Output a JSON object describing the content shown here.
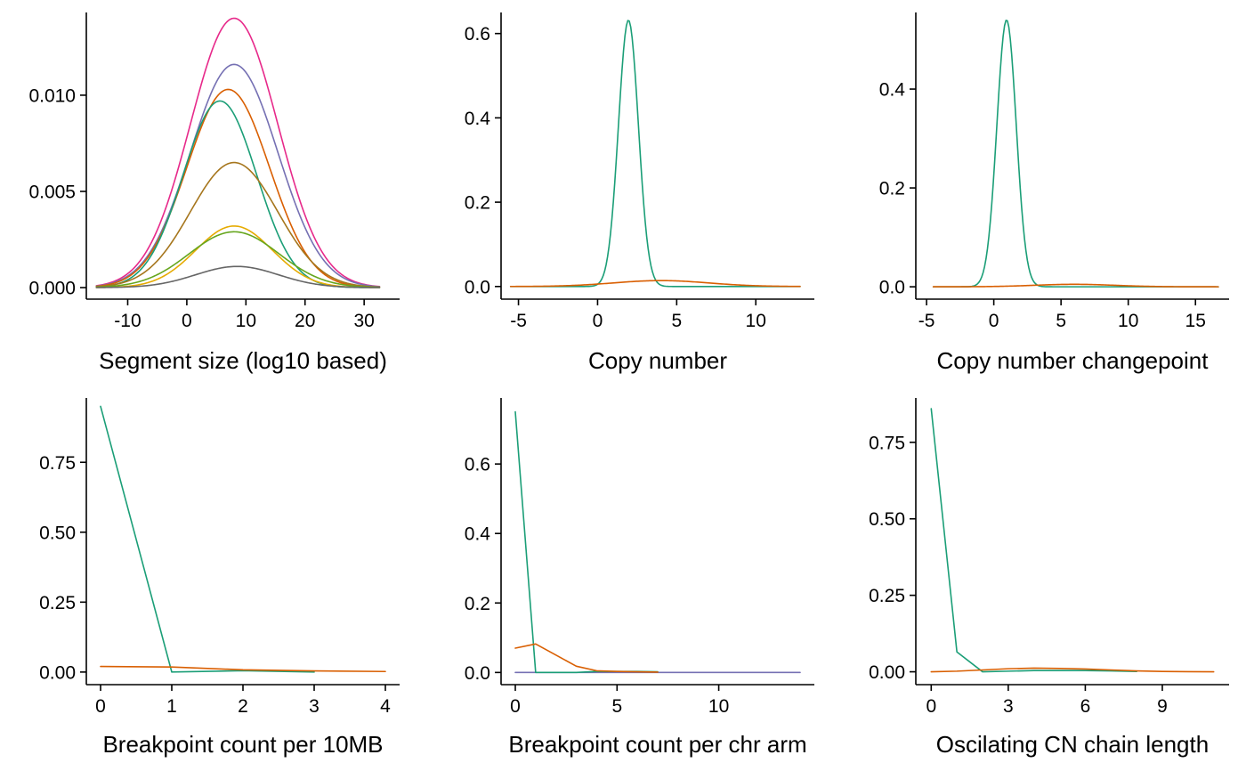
{
  "colors": {
    "teal": "#1B9E77",
    "orange": "#D95F02",
    "purple": "#7570B3",
    "magenta": "#E7298A",
    "green": "#66A61E",
    "yellow": "#E6AB02",
    "brown": "#A6761D",
    "grey": "#666666"
  },
  "chart_data": [
    {
      "type": "line",
      "curve": "density",
      "xlabel": "Segment size (log10 based)",
      "ylabel": "",
      "xlim": [
        -17,
        36
      ],
      "ylim": [
        -0.0006,
        0.0143
      ],
      "xticks": [
        -10,
        0,
        10,
        20,
        30
      ],
      "xtick_labels": [
        "-10",
        "0",
        "10",
        "20",
        "30"
      ],
      "yticks": [
        0,
        0.005,
        0.01
      ],
      "ytick_labels": [
        "0.000",
        "0.005",
        "0.010"
      ],
      "x_range": [
        -15.3,
        32.6
      ],
      "series": [
        {
          "color": "magenta",
          "mean": 8,
          "sd": 7.4,
          "peak": 0.014
        },
        {
          "color": "purple",
          "mean": 8,
          "sd": 7.4,
          "peak": 0.0116
        },
        {
          "color": "orange",
          "mean": 7,
          "sd": 7.0,
          "peak": 0.0103
        },
        {
          "color": "teal",
          "mean": 5.6,
          "sd": 6.2,
          "peak": 0.0097
        },
        {
          "color": "brown",
          "mean": 8,
          "sd": 7.4,
          "peak": 0.0065
        },
        {
          "color": "yellow",
          "mean": 8,
          "sd": 6.5,
          "peak": 0.0032
        },
        {
          "color": "green",
          "mean": 8,
          "sd": 7.6,
          "peak": 0.0029
        },
        {
          "color": "grey",
          "mean": 8.5,
          "sd": 7.0,
          "peak": 0.0011
        }
      ]
    },
    {
      "type": "line",
      "curve": "density",
      "xlabel": "Copy number",
      "ylabel": "",
      "xlim": [
        -6.1,
        13.7
      ],
      "ylim": [
        -0.03,
        0.65
      ],
      "xticks": [
        -5,
        0,
        5,
        10
      ],
      "xtick_labels": [
        "-5",
        "0",
        "5",
        "10"
      ],
      "yticks": [
        0,
        0.2,
        0.4,
        0.6
      ],
      "ytick_labels": [
        "0.0",
        "0.2",
        "0.4",
        "0.6"
      ],
      "x_range": [
        -5.5,
        12.8
      ],
      "series": [
        {
          "color": "teal",
          "mean": 1.95,
          "sd": 0.63,
          "peak": 0.632
        },
        {
          "color": "orange",
          "mean": 4.0,
          "sd": 3.0,
          "peak": 0.014
        }
      ]
    },
    {
      "type": "line",
      "curve": "density",
      "xlabel": "Copy number changepoint",
      "ylabel": "",
      "xlim": [
        -5.8,
        17.5
      ],
      "ylim": [
        -0.025,
        0.555
      ],
      "xticks": [
        -5,
        0,
        5,
        10,
        15
      ],
      "xtick_labels": [
        "-5",
        "0",
        "5",
        "10",
        "15"
      ],
      "yticks": [
        0,
        0.2,
        0.4
      ],
      "ytick_labels": [
        "0.0",
        "0.2",
        "0.4"
      ],
      "x_range": [
        -4.5,
        16.7
      ],
      "series": [
        {
          "color": "teal",
          "mean": 0.95,
          "sd": 0.72,
          "peak": 0.54
        },
        {
          "color": "orange",
          "mean": 6.0,
          "sd": 3.0,
          "peak": 0.005
        }
      ]
    },
    {
      "type": "line",
      "xlabel": "Breakpoint count per 10MB",
      "ylabel": "",
      "xlim": [
        -0.2,
        4.2
      ],
      "ylim": [
        -0.045,
        0.98
      ],
      "xticks": [
        0,
        1,
        2,
        3,
        4
      ],
      "xtick_labels": [
        "0",
        "1",
        "2",
        "3",
        "4"
      ],
      "yticks": [
        0,
        0.25,
        0.5,
        0.75
      ],
      "ytick_labels": [
        "0.00",
        "0.25",
        "0.50",
        "0.75"
      ],
      "series": [
        {
          "color": "teal",
          "x": [
            0,
            1,
            2,
            3
          ],
          "y": [
            0.95,
            0.0,
            0.005,
            0.0
          ]
        },
        {
          "color": "orange",
          "x": [
            0,
            1,
            2,
            3,
            4
          ],
          "y": [
            0.02,
            0.018,
            0.008,
            0.004,
            0.002
          ]
        }
      ]
    },
    {
      "type": "line",
      "xlabel": "Breakpoint count per chr arm",
      "ylabel": "",
      "xlim": [
        -0.7,
        14.7
      ],
      "ylim": [
        -0.035,
        0.79
      ],
      "xticks": [
        0,
        5,
        10
      ],
      "xtick_labels": [
        "0",
        "5",
        "10"
      ],
      "yticks": [
        0,
        0.2,
        0.4,
        0.6
      ],
      "ytick_labels": [
        "0.0",
        "0.2",
        "0.4",
        "0.6"
      ],
      "series": [
        {
          "color": "purple",
          "x": [
            0,
            14
          ],
          "y": [
            0.0,
            0.0
          ]
        },
        {
          "color": "teal",
          "x": [
            0,
            1,
            2,
            3,
            4,
            5,
            6,
            7
          ],
          "y": [
            0.75,
            0.0,
            0.0,
            0.0,
            0.003,
            0.003,
            0.003,
            0.002
          ]
        },
        {
          "color": "orange",
          "x": [
            0,
            1,
            2,
            3,
            4,
            5,
            6,
            7
          ],
          "y": [
            0.07,
            0.082,
            0.05,
            0.018,
            0.005,
            0.003,
            0.002,
            0.001
          ]
        }
      ]
    },
    {
      "type": "line",
      "xlabel": "Oscilating CN chain length",
      "ylabel": "",
      "xlim": [
        -0.6,
        11.6
      ],
      "ylim": [
        -0.042,
        0.895
      ],
      "xticks": [
        0,
        3,
        6,
        9
      ],
      "xtick_labels": [
        "0",
        "3",
        "6",
        "9"
      ],
      "yticks": [
        0,
        0.25,
        0.5,
        0.75
      ],
      "ytick_labels": [
        "0.00",
        "0.25",
        "0.50",
        "0.75"
      ],
      "series": [
        {
          "color": "teal",
          "x": [
            0,
            1,
            2,
            3,
            4,
            5,
            6,
            7,
            8
          ],
          "y": [
            0.86,
            0.065,
            0.0,
            0.002,
            0.004,
            0.004,
            0.004,
            0.003,
            0.001
          ]
        },
        {
          "color": "orange",
          "x": [
            0,
            1,
            2,
            3,
            4,
            5,
            6,
            7,
            8,
            9,
            10,
            11
          ],
          "y": [
            0.0,
            0.002,
            0.006,
            0.01,
            0.012,
            0.011,
            0.009,
            0.006,
            0.003,
            0.001,
            0.0005,
            0.0
          ]
        }
      ]
    }
  ]
}
